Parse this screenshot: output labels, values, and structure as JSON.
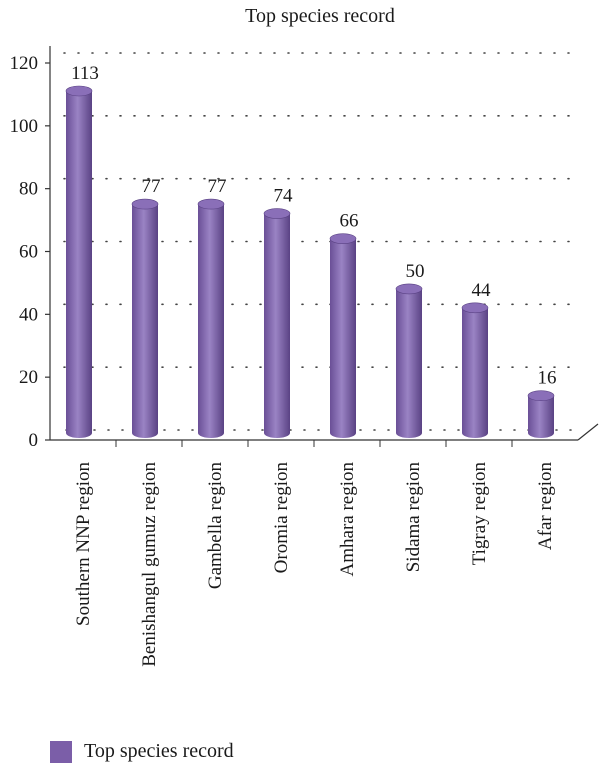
{
  "chart_data": {
    "type": "bar",
    "title": "Top species record",
    "categories": [
      "Southern NNP region",
      "Benishangul gumuz region",
      "Gambella region",
      "Oromia region",
      "Amhara region",
      "Sidama region",
      "Tigray region",
      "Afar region"
    ],
    "series": [
      {
        "name": "Top species record",
        "values": [
          113,
          77,
          77,
          74,
          66,
          50,
          44,
          16
        ]
      }
    ],
    "ylim": [
      0,
      120
    ],
    "yticks": [
      0,
      20,
      40,
      60,
      80,
      100,
      120
    ],
    "grid": true,
    "legend": "bottom-left",
    "bar_color": "#7b5ea8"
  }
}
